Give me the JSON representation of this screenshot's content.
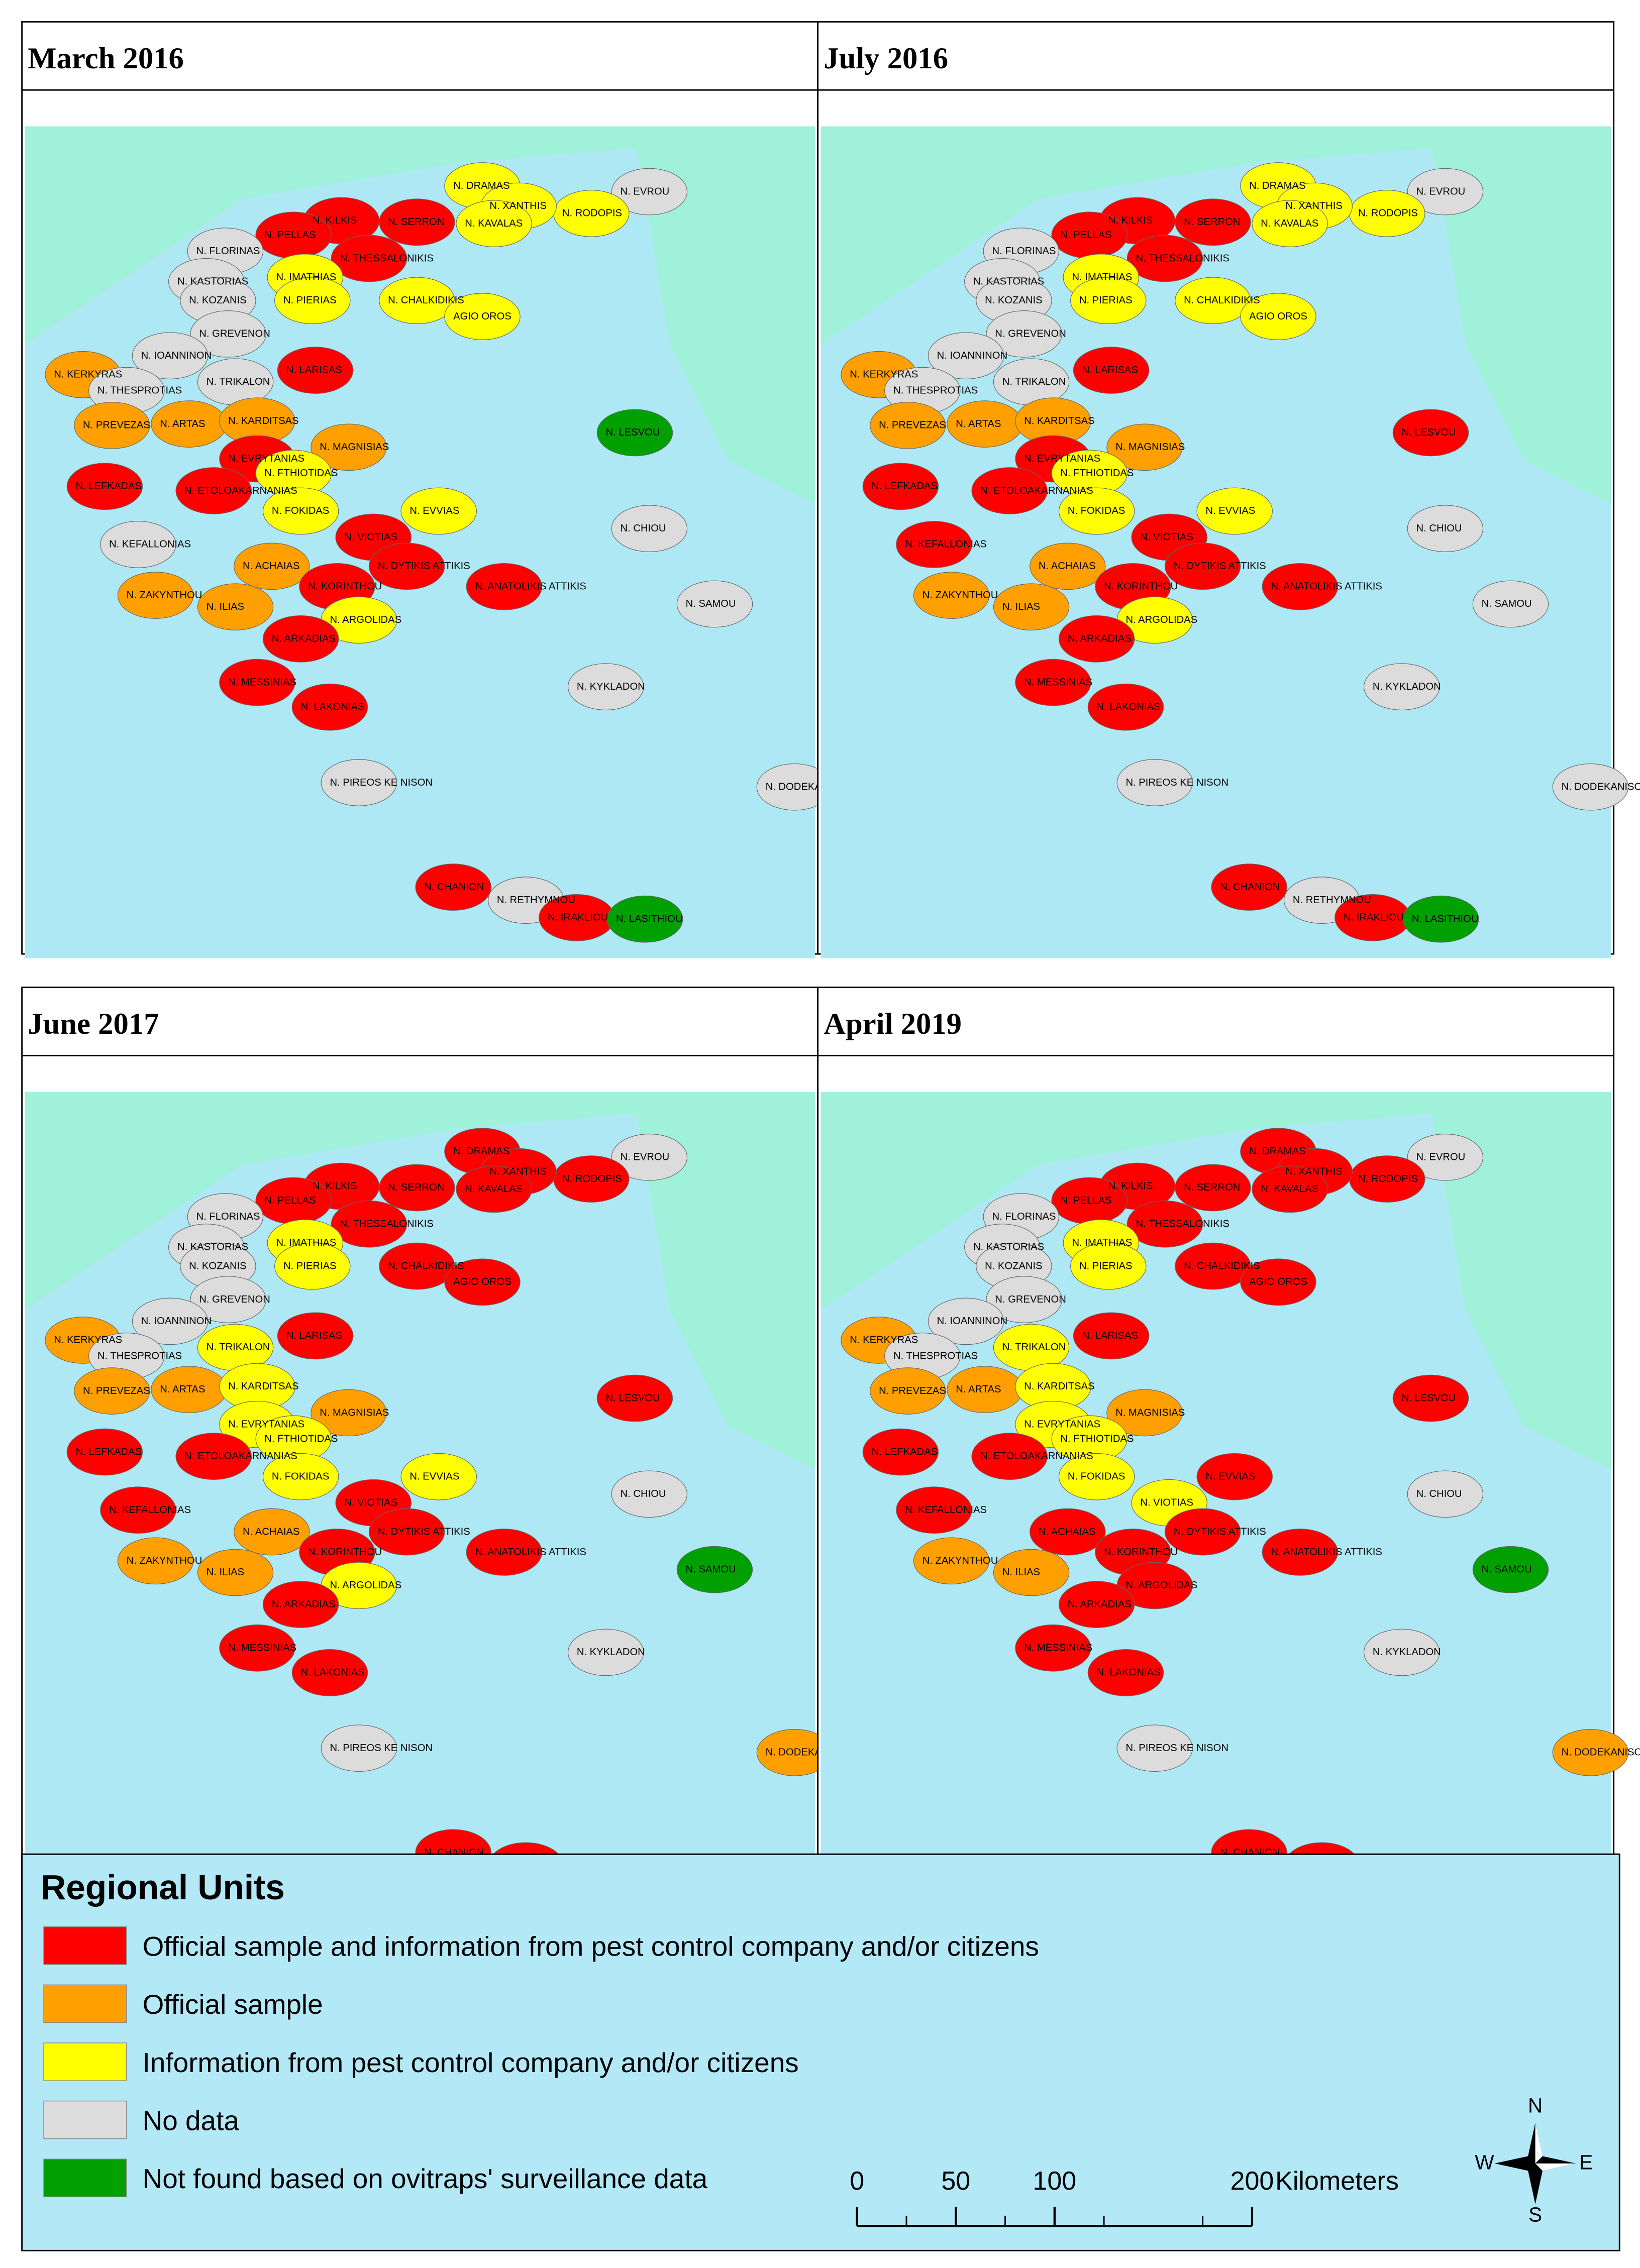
{
  "regions": [
    "N. EVROU",
    "N. DRAMAS",
    "N. RODOPIS",
    "N. XANTHIS",
    "N. KAVALAS",
    "N. SERRON",
    "N. KILKIS",
    "N. PELLAS",
    "N. THESSALONIKIS",
    "N. FLORINAS",
    "N. IMATHIAS",
    "N. KASTORIAS",
    "N. KOZANIS",
    "N. PIERIAS",
    "N. CHALKIDIKIS",
    "AGIO OROS",
    "N. GREVENON",
    "N. IOANNINON",
    "N. KERKYRAS",
    "N. TRIKALON",
    "N. LARISAS",
    "N. THESPROTIAS",
    "N. PREVEZAS",
    "N. ARTAS",
    "N. KARDITSAS",
    "N. MAGNISIAS",
    "N. EVRYTANIAS",
    "N. FTHIOTIDAS",
    "N. LESVOU",
    "N. LEFKADAS",
    "N. ETOLOAKARNANIAS",
    "N. FOKIDAS",
    "N. EVVIAS",
    "N. VIOTIAS",
    "N. KEFALLONIAS",
    "N. CHIOU",
    "N. ACHAIAS",
    "N. DYTIKIS ATTIKIS",
    "N. KORINTHOU",
    "N. ANATOLIKIS ATTIKIS",
    "N. ZAKYNTHOU",
    "N. SAMOU",
    "N. ILIAS",
    "N. ARGOLIDAS",
    "N. ARKADIAS",
    "N. MESSINIAS",
    "N. KYKLADON",
    "N. LAKONIAS",
    "N. PIREOS KE NISON",
    "N. DODEKANISON",
    "N. CHANION",
    "N. RETHYMNOU",
    "N. IRAKLIOU",
    "N. LASITHIOU"
  ],
  "maps": [
    {
      "title": "March 2016",
      "colors": [
        "#dcdcdc",
        "#ffff00",
        "#ffff00",
        "#ffff00",
        "#ffff00",
        "#ff0000",
        "#ff0000",
        "#ff0000",
        "#ff0000",
        "#dcdcdc",
        "#ffff00",
        "#dcdcdc",
        "#dcdcdc",
        "#ffff00",
        "#ffff00",
        "#ffff00",
        "#dcdcdc",
        "#dcdcdc",
        "#ffa000",
        "#dcdcdc",
        "#ff0000",
        "#dcdcdc",
        "#ffa000",
        "#ffa000",
        "#ffa000",
        "#ffa000",
        "#ff0000",
        "#ffff00",
        "#00a000",
        "#ff0000",
        "#ff0000",
        "#ffff00",
        "#ffff00",
        "#ff0000",
        "#dcdcdc",
        "#dcdcdc",
        "#ffa000",
        "#ff0000",
        "#ff0000",
        "#ff0000",
        "#ffa000",
        "#dcdcdc",
        "#ffa000",
        "#ffff00",
        "#ff0000",
        "#ff0000",
        "#dcdcdc",
        "#ff0000",
        "#dcdcdc",
        "#dcdcdc",
        "#ff0000",
        "#dcdcdc",
        "#ff0000",
        "#00a000"
      ]
    },
    {
      "title": "July 2016",
      "colors": [
        "#dcdcdc",
        "#ffff00",
        "#ffff00",
        "#ffff00",
        "#ffff00",
        "#ff0000",
        "#ff0000",
        "#ff0000",
        "#ff0000",
        "#dcdcdc",
        "#ffff00",
        "#dcdcdc",
        "#dcdcdc",
        "#ffff00",
        "#ffff00",
        "#ffff00",
        "#dcdcdc",
        "#dcdcdc",
        "#ffa000",
        "#dcdcdc",
        "#ff0000",
        "#dcdcdc",
        "#ffa000",
        "#ffa000",
        "#ffa000",
        "#ffa000",
        "#ff0000",
        "#ffff00",
        "#ff0000",
        "#ff0000",
        "#ff0000",
        "#ffff00",
        "#ffff00",
        "#ff0000",
        "#ff0000",
        "#dcdcdc",
        "#ffa000",
        "#ff0000",
        "#ff0000",
        "#ff0000",
        "#ffa000",
        "#dcdcdc",
        "#ffa000",
        "#ffff00",
        "#ff0000",
        "#ff0000",
        "#dcdcdc",
        "#ff0000",
        "#dcdcdc",
        "#dcdcdc",
        "#ff0000",
        "#dcdcdc",
        "#ff0000",
        "#00a000"
      ]
    },
    {
      "title": "June 2017",
      "colors": [
        "#dcdcdc",
        "#ff0000",
        "#ff0000",
        "#ff0000",
        "#ff0000",
        "#ff0000",
        "#ff0000",
        "#ff0000",
        "#ff0000",
        "#dcdcdc",
        "#ffff00",
        "#dcdcdc",
        "#dcdcdc",
        "#ffff00",
        "#ff0000",
        "#ff0000",
        "#dcdcdc",
        "#dcdcdc",
        "#ffa000",
        "#ffff00",
        "#ff0000",
        "#dcdcdc",
        "#ffa000",
        "#ffa000",
        "#ffff00",
        "#ffa000",
        "#ffff00",
        "#ffff00",
        "#ff0000",
        "#ff0000",
        "#ff0000",
        "#ffff00",
        "#ffff00",
        "#ff0000",
        "#ff0000",
        "#dcdcdc",
        "#ffa000",
        "#ff0000",
        "#ff0000",
        "#ff0000",
        "#ffa000",
        "#00a000",
        "#ffa000",
        "#ffff00",
        "#ff0000",
        "#ff0000",
        "#dcdcdc",
        "#ff0000",
        "#dcdcdc",
        "#ffa000",
        "#ff0000",
        "#ff0000",
        "#ff0000",
        "#ffa000"
      ]
    },
    {
      "title": "April 2019",
      "colors": [
        "#dcdcdc",
        "#ff0000",
        "#ff0000",
        "#ff0000",
        "#ff0000",
        "#ff0000",
        "#ff0000",
        "#ff0000",
        "#ff0000",
        "#dcdcdc",
        "#ffff00",
        "#dcdcdc",
        "#dcdcdc",
        "#ffff00",
        "#ff0000",
        "#ff0000",
        "#dcdcdc",
        "#dcdcdc",
        "#ffa000",
        "#ffff00",
        "#ff0000",
        "#dcdcdc",
        "#ffa000",
        "#ffa000",
        "#ffff00",
        "#ffa000",
        "#ffff00",
        "#ffff00",
        "#ff0000",
        "#ff0000",
        "#ff0000",
        "#ffff00",
        "#ff0000",
        "#ffff00",
        "#ff0000",
        "#dcdcdc",
        "#ff0000",
        "#ff0000",
        "#ff0000",
        "#ff0000",
        "#ffa000",
        "#00a000",
        "#ffa000",
        "#ff0000",
        "#ff0000",
        "#ff0000",
        "#dcdcdc",
        "#ff0000",
        "#dcdcdc",
        "#ffa000",
        "#ff0000",
        "#ff0000",
        "#ff0000",
        "#ffa000"
      ]
    }
  ],
  "legend": {
    "title": "Regional Units",
    "items": [
      {
        "label": "Official sample and information from pest control company and/or citizens",
        "color": "#ff0000"
      },
      {
        "label": "Official sample",
        "color": "#ffa000"
      },
      {
        "label": "Information from pest control company and/or citizens",
        "color": "#ffff00"
      },
      {
        "label": "No data",
        "color": "#dcdcdc"
      },
      {
        "label": "Not found based on ovitraps' surveillance data",
        "color": "#00a000"
      }
    ]
  },
  "scale_bar": {
    "ticks": [
      0,
      50,
      100,
      200
    ],
    "unit": "Kilometers"
  },
  "compass": {
    "n": "N",
    "e": "E",
    "s": "S",
    "w": "W"
  }
}
